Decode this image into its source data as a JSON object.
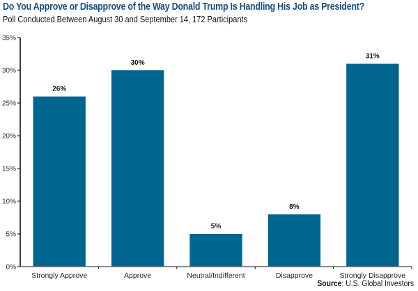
{
  "header": {
    "title": "Do You Approve or Disapprove of the Way Donald Trump Is Handling His Job as President?",
    "subtitle": "Poll Conducted Between August 30 and September 14, 172 Participants"
  },
  "footer": {
    "source_label": "Source",
    "source_text": ": U.S. Global Investors"
  },
  "colors": {
    "bar": "#00668f",
    "title": "#1b4f80",
    "axis": "#000000",
    "baseline": "#666666"
  },
  "chart_data": {
    "type": "bar",
    "title": "Do You Approve or Disapprove of the Way Donald Trump Is Handling His Job as President?",
    "subtitle": "Poll Conducted Between August 30 and September 14, 172 Participants",
    "categories": [
      "Strongly Approve",
      "Approve",
      "Neutral/Indifferent",
      "Disapprove",
      "Strongly Disapprove"
    ],
    "values": [
      26,
      30,
      5,
      8,
      31
    ],
    "data_labels": [
      "26%",
      "30%",
      "5%",
      "8%",
      "31%"
    ],
    "xlabel": "",
    "ylabel": "",
    "ylim": [
      0,
      35
    ],
    "yticks": [
      0,
      5,
      10,
      15,
      20,
      25,
      30,
      35
    ],
    "ytick_labels": [
      "0%",
      "5%",
      "10%",
      "15%",
      "20%",
      "25%",
      "30%",
      "35%"
    ],
    "grid": false,
    "legend": "none",
    "source": "Source: U.S. Global Investors"
  }
}
